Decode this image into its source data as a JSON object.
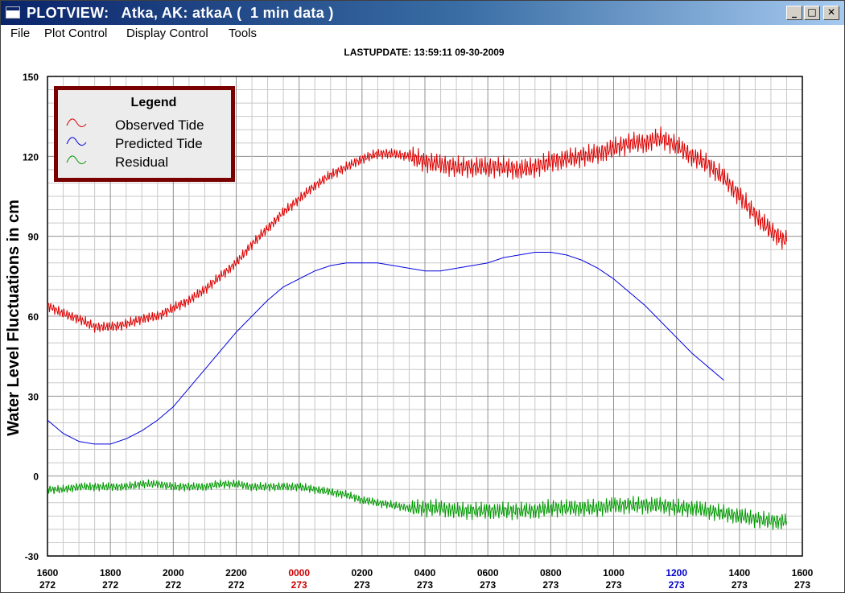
{
  "window": {
    "title": "PLOTVIEW:   Atka, AK: atkaA (  1 min data )",
    "buttons": {
      "minimize": "_",
      "maximize": "□",
      "close": "✕"
    }
  },
  "menu": [
    "File",
    "Plot Control",
    "Display Control",
    "Tools"
  ],
  "chart_data": {
    "type": "line",
    "title": "LASTUPDATE: 13:59:11  09-30-2009",
    "ylabel": "Water Level Fluctuations in cm",
    "xlabel": "",
    "xlim": [
      0,
      48
    ],
    "ylim": [
      -30,
      150
    ],
    "yticks": [
      -30,
      0,
      30,
      60,
      90,
      120,
      150
    ],
    "grid": true,
    "legend": {
      "title": "Legend",
      "placement": "top-left"
    },
    "xticks": [
      {
        "label": "1600",
        "day": "272",
        "color": "#000000"
      },
      {
        "label": "1800",
        "day": "272",
        "color": "#000000"
      },
      {
        "label": "2000",
        "day": "272",
        "color": "#000000"
      },
      {
        "label": "2200",
        "day": "272",
        "color": "#000000"
      },
      {
        "label": "0000",
        "day": "273",
        "color": "#cc0000"
      },
      {
        "label": "0200",
        "day": "273",
        "color": "#000000"
      },
      {
        "label": "0400",
        "day": "273",
        "color": "#000000"
      },
      {
        "label": "0600",
        "day": "273",
        "color": "#000000"
      },
      {
        "label": "0800",
        "day": "273",
        "color": "#000000"
      },
      {
        "label": "1000",
        "day": "273",
        "color": "#000000"
      },
      {
        "label": "1200",
        "day": "273",
        "color": "#0000cc"
      },
      {
        "label": "1400",
        "day": "273",
        "color": "#000000"
      },
      {
        "label": "1600",
        "day": "273",
        "color": "#000000"
      }
    ],
    "series": [
      {
        "name": "Observed Tide",
        "color": "#dd0000",
        "x": [
          0,
          1,
          2,
          3,
          4,
          5,
          6,
          7,
          8,
          9,
          10,
          11,
          12,
          13,
          14,
          15,
          16,
          17,
          18,
          19,
          20,
          21,
          22,
          23,
          24,
          25,
          26,
          27,
          28,
          29,
          30,
          31,
          32,
          33,
          34,
          35,
          36,
          37,
          38,
          39,
          40,
          41,
          42,
          43,
          44,
          45,
          46,
          47,
          48
        ],
        "y": [
          64,
          61,
          59,
          56,
          56,
          57,
          59,
          60,
          63,
          66,
          70,
          75,
          80,
          87,
          93,
          99,
          104,
          109,
          113,
          116,
          119,
          121,
          121,
          120,
          118,
          117,
          116,
          116,
          116,
          116,
          115,
          116,
          118,
          119,
          120,
          121,
          123,
          125,
          125,
          127,
          124,
          120,
          117,
          112,
          105,
          98,
          92,
          88,
          null
        ]
      },
      {
        "name": "Predicted Tide",
        "color": "#0000dd",
        "x": [
          0,
          1,
          2,
          3,
          4,
          5,
          6,
          7,
          8,
          9,
          10,
          11,
          12,
          13,
          14,
          15,
          16,
          17,
          18,
          19,
          20,
          21,
          22,
          23,
          24,
          25,
          26,
          27,
          28,
          29,
          30,
          31,
          32,
          33,
          34,
          35,
          36,
          37,
          38,
          39,
          40,
          41,
          42,
          43,
          44,
          45,
          46,
          47,
          48
        ],
        "y": [
          21,
          16,
          13,
          12,
          12,
          14,
          17,
          21,
          26,
          33,
          40,
          47,
          54,
          60,
          66,
          71,
          74,
          77,
          79,
          80,
          80,
          80,
          79,
          78,
          77,
          77,
          78,
          79,
          80,
          82,
          83,
          84,
          84,
          83,
          81,
          78,
          74,
          69,
          64,
          58,
          52,
          46,
          41,
          36,
          null,
          null,
          null,
          null,
          null
        ]
      },
      {
        "name": "Residual",
        "color": "#009900",
        "x": [
          0,
          1,
          2,
          3,
          4,
          5,
          6,
          7,
          8,
          9,
          10,
          11,
          12,
          13,
          14,
          15,
          16,
          17,
          18,
          19,
          20,
          21,
          22,
          23,
          24,
          25,
          26,
          27,
          28,
          29,
          30,
          31,
          32,
          33,
          34,
          35,
          36,
          37,
          38,
          39,
          40,
          41,
          42,
          43,
          44,
          45,
          46,
          47,
          48
        ],
        "y": [
          -5,
          -5,
          -4,
          -4,
          -4,
          -4,
          -3,
          -3,
          -4,
          -4,
          -4,
          -3,
          -3,
          -4,
          -4,
          -4,
          -4,
          -5,
          -6,
          -7,
          -9,
          -10,
          -11,
          -12,
          -12,
          -12,
          -13,
          -13,
          -13,
          -13,
          -13,
          -13,
          -12,
          -12,
          -12,
          -12,
          -11,
          -11,
          -11,
          -11,
          -12,
          -12,
          -13,
          -14,
          -15,
          -16,
          -17,
          -17,
          null
        ]
      }
    ]
  }
}
